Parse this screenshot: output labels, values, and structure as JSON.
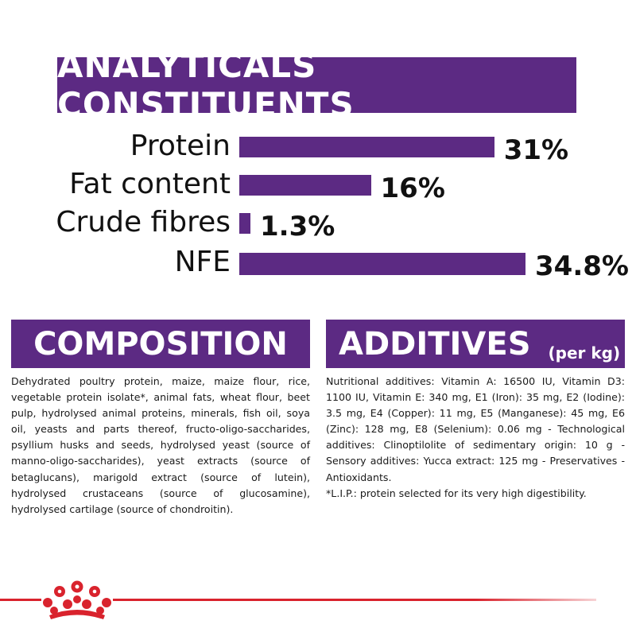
{
  "analyticals": {
    "title": "ANALYTICALS CONSTITUENTS"
  },
  "chart_data": {
    "type": "bar",
    "categories": [
      "Protein",
      "Fat content",
      "Crude fibres",
      "NFE"
    ],
    "values": [
      31,
      16,
      1.3,
      34.8
    ],
    "value_labels": [
      "31%",
      "16%",
      "1.3%",
      "34.8%"
    ],
    "orientation": "horizontal",
    "bar_color": "#5c2a83",
    "title": "ANALYTICALS CONSTITUENTS"
  },
  "composition": {
    "title": "COMPOSITION",
    "text": "Dehydrated poultry protein, maize, maize flour, rice, vegetable protein isolate*, animal fats, wheat flour, beet pulp, hydrolysed animal proteins, minerals, fish oil, soya oil, yeasts and parts thereof, fructo-oligo-saccharides, psyllium husks and seeds, hydrolysed yeast (source of manno-oligo-saccharides), yeast extracts (source of betaglucans), marigold extract (source of lutein), hydrolysed crustaceans (source of glucosamine), hydrolysed cartilage (source of chondroitin)."
  },
  "additives": {
    "title": "ADDITIVES",
    "unit": "(per kg)",
    "text": "Nutritional additives: Vitamin A: 16500 IU, Vitamin D3: 1100 IU, Vitamin E: 340 mg, E1 (Iron): 35 mg, E2 (Iodine): 3.5 mg, E4 (Copper): 11 mg, E5 (Manganese): 45 mg, E6 (Zinc): 128 mg, E8 (Selenium): 0.06 mg - Technological additives: Clinoptilolite of sedimentary origin: 10 g - Sensory additives: Yucca extract: 125 mg - Preservatives - Antioxidants.",
    "footnote": "*L.I.P.: protein selected for its very high digestibility."
  },
  "colors": {
    "brand_purple": "#5c2a83",
    "brand_red": "#d9232d"
  },
  "logo": {
    "icon": "royal-canin-crown-icon"
  }
}
